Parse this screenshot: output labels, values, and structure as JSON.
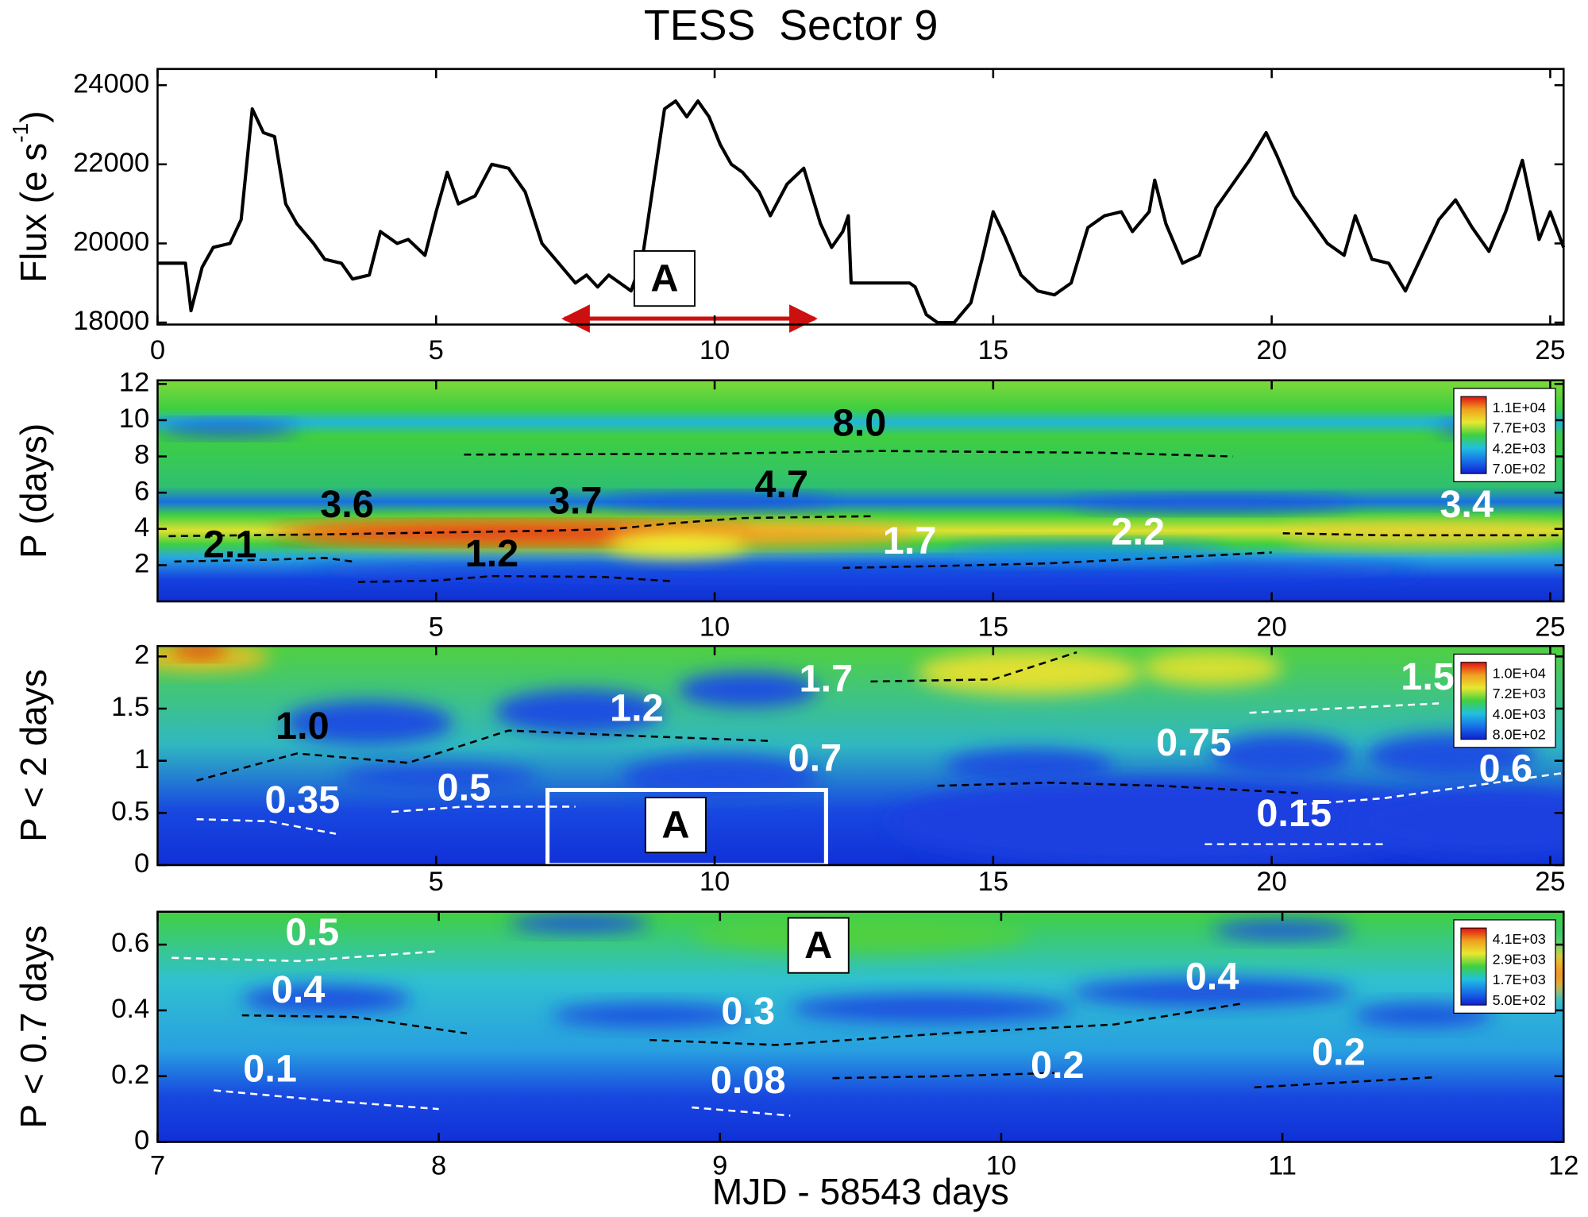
{
  "chart_data": [
    {
      "type": "line",
      "title": "TESS  Sector 9",
      "y_label": "Flux (e s",
      "y_label_sup": "-1",
      "y_label_end": ")",
      "xlim": [
        0,
        25.24
      ],
      "xticks": [
        0,
        5,
        10,
        15,
        20,
        25
      ],
      "ylim": [
        17950,
        24410
      ],
      "yticks": [
        18000,
        20000,
        22000,
        24000
      ],
      "color": "#000000",
      "x": [
        0,
        0.5,
        0.6,
        0.8,
        1.0,
        1.3,
        1.5,
        1.7,
        1.9,
        2.1,
        2.3,
        2.5,
        2.8,
        3.0,
        3.3,
        3.5,
        3.8,
        4.0,
        4.3,
        4.5,
        4.8,
        5.0,
        5.2,
        5.4,
        5.7,
        6.0,
        6.3,
        6.6,
        6.9,
        7.2,
        7.5,
        7.7,
        7.9,
        8.1,
        8.3,
        8.5,
        8.7,
        8.9,
        9.1,
        9.3,
        9.5,
        9.7,
        9.9,
        10.1,
        10.3,
        10.5,
        10.8,
        11.0,
        11.3,
        11.6,
        11.9,
        12.1,
        12.3,
        12.4,
        12.45,
        13.0,
        13.5,
        13.6,
        13.8,
        14.0,
        14.3,
        14.6,
        14.8,
        15.0,
        15.2,
        15.5,
        15.8,
        16.1,
        16.4,
        16.7,
        17.0,
        17.3,
        17.5,
        17.8,
        17.9,
        18.1,
        18.4,
        18.7,
        19.0,
        19.3,
        19.6,
        19.9,
        20.1,
        20.4,
        20.7,
        21.0,
        21.3,
        21.5,
        21.8,
        22.1,
        22.4,
        22.7,
        23.0,
        23.3,
        23.6,
        23.9,
        24.2,
        24.5,
        24.8,
        25.0,
        25.24
      ],
      "values": [
        19500,
        19500,
        18300,
        19400,
        19900,
        20000,
        20600,
        23400,
        22800,
        22700,
        21000,
        20500,
        20000,
        19600,
        19500,
        19100,
        19200,
        20300,
        20000,
        20100,
        19700,
        20800,
        21800,
        21000,
        21200,
        22000,
        21900,
        21300,
        20000,
        19500,
        19000,
        19200,
        18900,
        19200,
        19000,
        18800,
        19600,
        21500,
        23400,
        23600,
        23200,
        23600,
        23200,
        22500,
        22000,
        21800,
        21300,
        20700,
        21500,
        21900,
        20500,
        19900,
        20300,
        20700,
        19000,
        19000,
        19000,
        18900,
        18200,
        18000,
        18000,
        18500,
        19600,
        20800,
        20200,
        19200,
        18800,
        18700,
        19000,
        20400,
        20700,
        20800,
        20300,
        20800,
        21600,
        20500,
        19500,
        19700,
        20900,
        21500,
        22100,
        22800,
        22200,
        21200,
        20600,
        20000,
        19700,
        20700,
        19600,
        19500,
        18800,
        19700,
        20600,
        21100,
        20400,
        19800,
        20800,
        22100,
        20100,
        20800,
        19900
      ],
      "annotations": [
        {
          "text": "A",
          "x": 9.1,
          "y": 19050,
          "boxed": true,
          "color": "#000000"
        }
      ],
      "arrows": [
        {
          "x_range": [
            7.3,
            11.8
          ],
          "y": 18100,
          "color": "#cc1010"
        }
      ]
    },
    {
      "type": "wavelet",
      "y_label": "P (days)",
      "xlim": [
        0,
        25.24
      ],
      "xticks": [
        5,
        10,
        15,
        20,
        25
      ],
      "ylim": [
        0,
        12.2
      ],
      "yticks": [
        2,
        4,
        6,
        8,
        10,
        12
      ],
      "legend": "top-right",
      "colorbar_labels": [
        "1.1E+04",
        "7.7E+03",
        "4.2E+03",
        "7.0E+02"
      ],
      "colorbar_colors": [
        "#e01010",
        "#f0a020",
        "#e8e830",
        "#40d040",
        "#20c0e0",
        "#1870e8",
        "#1020d0"
      ],
      "ridges": [
        {
          "color": "#000000",
          "x": [
            0.3,
            2,
            3,
            3.5
          ],
          "values": [
            2.2,
            2.3,
            2.4,
            2.2
          ]
        },
        {
          "color": "#000000",
          "x": [
            0.2,
            3,
            5,
            7,
            8.2,
            9.2,
            10.5,
            12.8
          ],
          "values": [
            3.6,
            3.7,
            3.8,
            3.9,
            4.0,
            4.3,
            4.6,
            4.7
          ]
        },
        {
          "color": "#000000",
          "x": [
            5.5,
            10,
            13,
            17,
            19.3
          ],
          "values": [
            8.1,
            8.15,
            8.3,
            8.2,
            8.0
          ]
        },
        {
          "color": "#000000",
          "x": [
            3.6,
            5,
            6,
            8,
            9.2
          ],
          "values": [
            1.07,
            1.15,
            1.4,
            1.35,
            1.12
          ]
        },
        {
          "color": "#000000",
          "x": [
            12.3,
            14,
            16,
            18,
            20
          ],
          "values": [
            1.85,
            1.95,
            2.1,
            2.4,
            2.7
          ]
        },
        {
          "color": "#000000",
          "x": [
            20.2,
            22,
            25.2
          ],
          "values": [
            3.76,
            3.65,
            3.65
          ]
        }
      ],
      "annotations": [
        {
          "text": "2.1",
          "x": 1.3,
          "y": 3.0,
          "color": "#000000"
        },
        {
          "text": "3.6",
          "x": 3.4,
          "y": 5.2,
          "color": "#000000"
        },
        {
          "text": "3.7",
          "x": 7.5,
          "y": 5.4,
          "color": "#000000"
        },
        {
          "text": "4.7",
          "x": 11.2,
          "y": 6.3,
          "color": "#000000"
        },
        {
          "text": "8.0",
          "x": 12.6,
          "y": 9.7,
          "color": "#000000"
        },
        {
          "text": "1.2",
          "x": 6.0,
          "y": 2.5,
          "color": "#000000"
        },
        {
          "text": "1.7",
          "x": 13.5,
          "y": 3.2,
          "color": "#ffffff"
        },
        {
          "text": "2.2",
          "x": 17.6,
          "y": 3.7,
          "color": "#ffffff"
        },
        {
          "text": "3.4",
          "x": 23.5,
          "y": 5.2,
          "color": "#ffffff"
        }
      ]
    },
    {
      "type": "wavelet",
      "y_label": "P < 2 days",
      "xlim": [
        0,
        25.24
      ],
      "xticks": [
        5,
        10,
        15,
        20,
        25
      ],
      "ylim": [
        0,
        2.1
      ],
      "yticks": [
        0,
        0.5,
        1,
        1.5,
        2
      ],
      "legend": "top-right",
      "colorbar_labels": [
        "1.0E+04",
        "7.2E+03",
        "4.0E+03",
        "8.0E+02"
      ],
      "colorbar_colors": [
        "#e01010",
        "#f0a020",
        "#e8e830",
        "#40d040",
        "#20c0e0",
        "#1870e8",
        "#1020d0"
      ],
      "ridges": [
        {
          "color": "#000000",
          "x": [
            0.7,
            2.5,
            4.5,
            6.3,
            8.5,
            11
          ],
          "values": [
            0.81,
            1.07,
            0.98,
            1.29,
            1.24,
            1.19
          ]
        },
        {
          "color": "#000000",
          "x": [
            12.8,
            15,
            16.5
          ],
          "values": [
            1.76,
            1.78,
            2.04
          ]
        },
        {
          "color": "#ffffff",
          "x": [
            0.7,
            2,
            3.2
          ],
          "values": [
            0.44,
            0.42,
            0.3
          ]
        },
        {
          "color": "#ffffff",
          "x": [
            4.2,
            5.5,
            7.5
          ],
          "values": [
            0.51,
            0.56,
            0.56
          ]
        },
        {
          "color": "#000000",
          "x": [
            14,
            16,
            18,
            20.5
          ],
          "values": [
            0.76,
            0.79,
            0.76,
            0.69
          ]
        },
        {
          "color": "#ffffff",
          "x": [
            20.5,
            22,
            25.2
          ],
          "values": [
            0.58,
            0.64,
            0.88
          ]
        },
        {
          "color": "#ffffff",
          "x": [
            19.6,
            23
          ],
          "values": [
            1.46,
            1.55
          ]
        },
        {
          "color": "#ffffff",
          "x": [
            18.8,
            22
          ],
          "values": [
            0.2,
            0.2
          ]
        }
      ],
      "regions": [
        {
          "x_range": [
            7,
            12
          ],
          "y_range": [
            0,
            0.72
          ],
          "color": "#ffffff"
        }
      ],
      "annotations": [
        {
          "text": "1.0",
          "x": 2.6,
          "y": 1.31,
          "color": "#000000"
        },
        {
          "text": "1.2",
          "x": 8.6,
          "y": 1.48,
          "color": "#ffffff"
        },
        {
          "text": "1.7",
          "x": 12.0,
          "y": 1.76,
          "color": "#ffffff"
        },
        {
          "text": "0.35",
          "x": 2.6,
          "y": 0.6,
          "color": "#ffffff"
        },
        {
          "text": "0.5",
          "x": 5.5,
          "y": 0.72,
          "color": "#ffffff"
        },
        {
          "text": "0.7",
          "x": 11.8,
          "y": 1.0,
          "color": "#ffffff"
        },
        {
          "text": "0.75",
          "x": 18.6,
          "y": 1.15,
          "color": "#ffffff"
        },
        {
          "text": "0.6",
          "x": 24.2,
          "y": 0.9,
          "color": "#ffffff"
        },
        {
          "text": "1.5",
          "x": 22.8,
          "y": 1.78,
          "color": "#ffffff"
        },
        {
          "text": "0.15",
          "x": 20.4,
          "y": 0.47,
          "color": "#ffffff"
        },
        {
          "text": "A",
          "x": 9.3,
          "y": 0.36,
          "boxed": true,
          "color": "#000000"
        }
      ]
    },
    {
      "type": "wavelet",
      "y_label": "P < 0.7 days",
      "x_label": "MJD - 58543 days",
      "xlim": [
        7,
        12
      ],
      "xticks": [
        7,
        8,
        9,
        10,
        11,
        12
      ],
      "ylim": [
        0,
        0.7
      ],
      "yticks": [
        0,
        0.2,
        0.4,
        0.6
      ],
      "legend": "top-right",
      "colorbar_labels": [
        "4.1E+03",
        "2.9E+03",
        "1.7E+03",
        "5.0E+02"
      ],
      "colorbar_colors": [
        "#e01010",
        "#f0a020",
        "#e8e830",
        "#40d040",
        "#20c0e0",
        "#1870e8",
        "#1020d0"
      ],
      "ridges": [
        {
          "color": "#ffffff",
          "x": [
            7.05,
            7.5,
            8.0
          ],
          "values": [
            0.56,
            0.55,
            0.58
          ]
        },
        {
          "color": "#000000",
          "x": [
            7.3,
            7.7,
            8.1
          ],
          "values": [
            0.385,
            0.38,
            0.33
          ]
        },
        {
          "color": "#000000",
          "x": [
            8.75,
            9.2,
            9.8,
            10.4,
            10.85
          ],
          "values": [
            0.31,
            0.295,
            0.33,
            0.357,
            0.42
          ]
        },
        {
          "color": "#000000",
          "x": [
            9.4,
            9.8,
            10.2
          ],
          "values": [
            0.194,
            0.2,
            0.21
          ]
        },
        {
          "color": "#ffffff",
          "x": [
            7.2,
            7.6,
            8.0
          ],
          "values": [
            0.157,
            0.126,
            0.1
          ]
        },
        {
          "color": "#ffffff",
          "x": [
            8.9,
            9.25
          ],
          "values": [
            0.105,
            0.08
          ]
        },
        {
          "color": "#000000",
          "x": [
            10.9,
            11.55
          ],
          "values": [
            0.166,
            0.197
          ]
        }
      ],
      "annotations": [
        {
          "text": "0.5",
          "x": 7.55,
          "y": 0.63,
          "color": "#ffffff"
        },
        {
          "text": "0.4",
          "x": 7.5,
          "y": 0.455,
          "color": "#ffffff"
        },
        {
          "text": "0.3",
          "x": 9.1,
          "y": 0.39,
          "color": "#ffffff"
        },
        {
          "text": "0.4",
          "x": 10.75,
          "y": 0.495,
          "color": "#ffffff"
        },
        {
          "text": "0.2",
          "x": 10.2,
          "y": 0.225,
          "color": "#ffffff"
        },
        {
          "text": "0.1",
          "x": 7.4,
          "y": 0.215,
          "color": "#ffffff"
        },
        {
          "text": "0.08",
          "x": 9.1,
          "y": 0.18,
          "color": "#ffffff"
        },
        {
          "text": "0.2",
          "x": 11.2,
          "y": 0.265,
          "color": "#ffffff"
        },
        {
          "text": "A",
          "x": 9.35,
          "y": 0.59,
          "boxed": true,
          "color": "#000000"
        }
      ]
    }
  ]
}
